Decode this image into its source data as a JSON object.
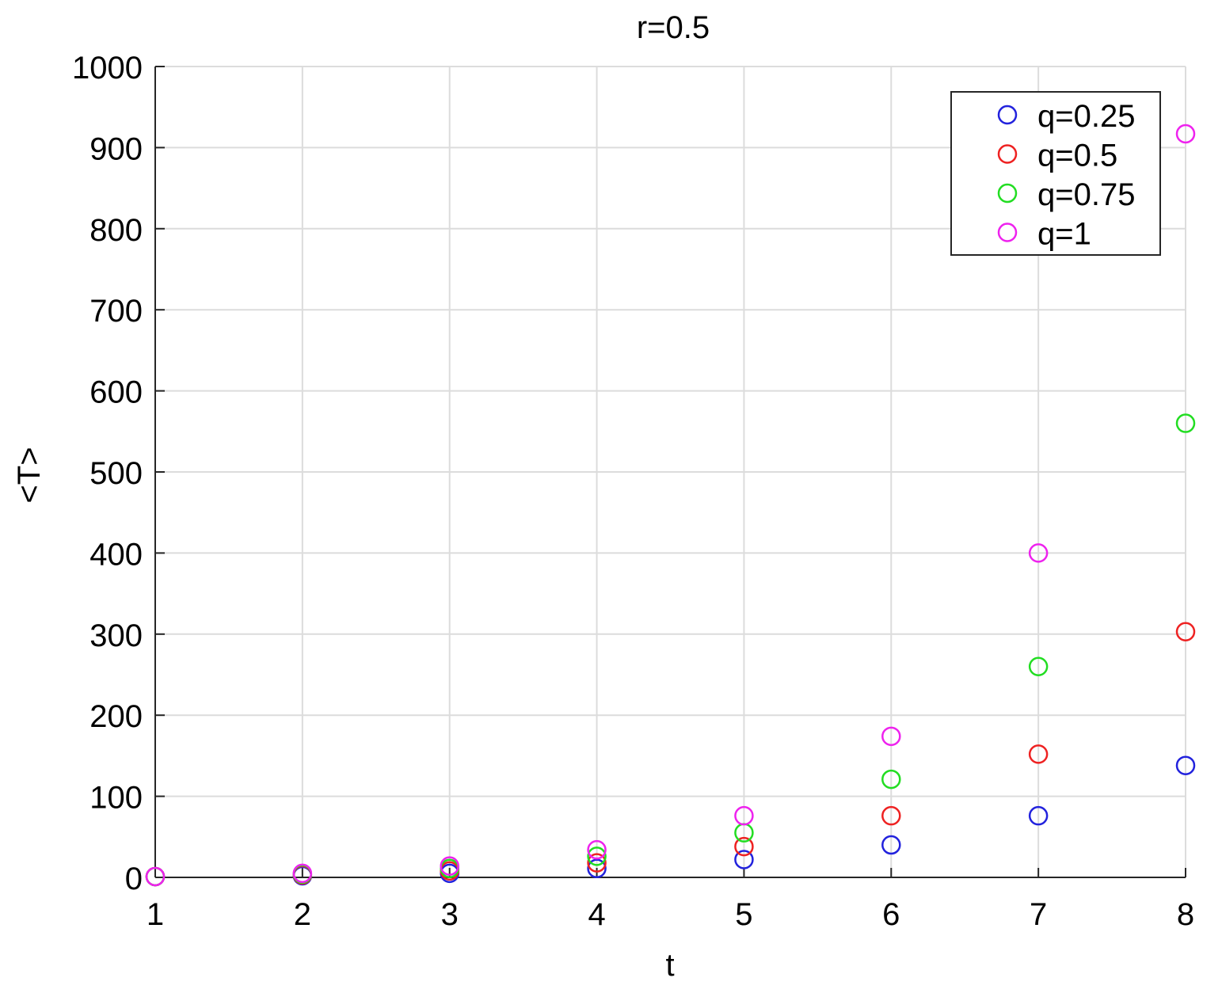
{
  "chart_data": {
    "type": "scatter",
    "title": "r=0.5",
    "xlabel": "t",
    "ylabel": "<T>",
    "xlim": [
      1,
      8
    ],
    "ylim": [
      0,
      1000
    ],
    "xticks": [
      "1",
      "2",
      "3",
      "4",
      "5",
      "6",
      "7",
      "8"
    ],
    "yticks": [
      "0",
      "100",
      "200",
      "300",
      "400",
      "500",
      "600",
      "700",
      "800",
      "900",
      "1000"
    ],
    "grid": true,
    "legend_position": "top-right",
    "marker": "open-circle",
    "series": [
      {
        "name": "q=0.25",
        "color": "#2222dd",
        "x": [
          1,
          2,
          3,
          4,
          5,
          6,
          7,
          8
        ],
        "values": [
          1,
          2,
          5,
          11,
          22,
          40,
          76,
          138
        ]
      },
      {
        "name": "q=0.5",
        "color": "#ee2222",
        "x": [
          1,
          2,
          3,
          4,
          5,
          6,
          7,
          8
        ],
        "values": [
          1,
          3,
          8,
          18,
          38,
          76,
          152,
          303
        ]
      },
      {
        "name": "q=0.75",
        "color": "#22dd22",
        "x": [
          1,
          2,
          3,
          4,
          5,
          6,
          7,
          8
        ],
        "values": [
          1,
          4,
          11,
          26,
          55,
          121,
          260,
          560
        ]
      },
      {
        "name": "q=1",
        "color": "#ee22ee",
        "x": [
          1,
          2,
          3,
          4,
          5,
          6,
          7,
          8
        ],
        "values": [
          1,
          5,
          14,
          34,
          76,
          174,
          400,
          917
        ]
      }
    ]
  }
}
